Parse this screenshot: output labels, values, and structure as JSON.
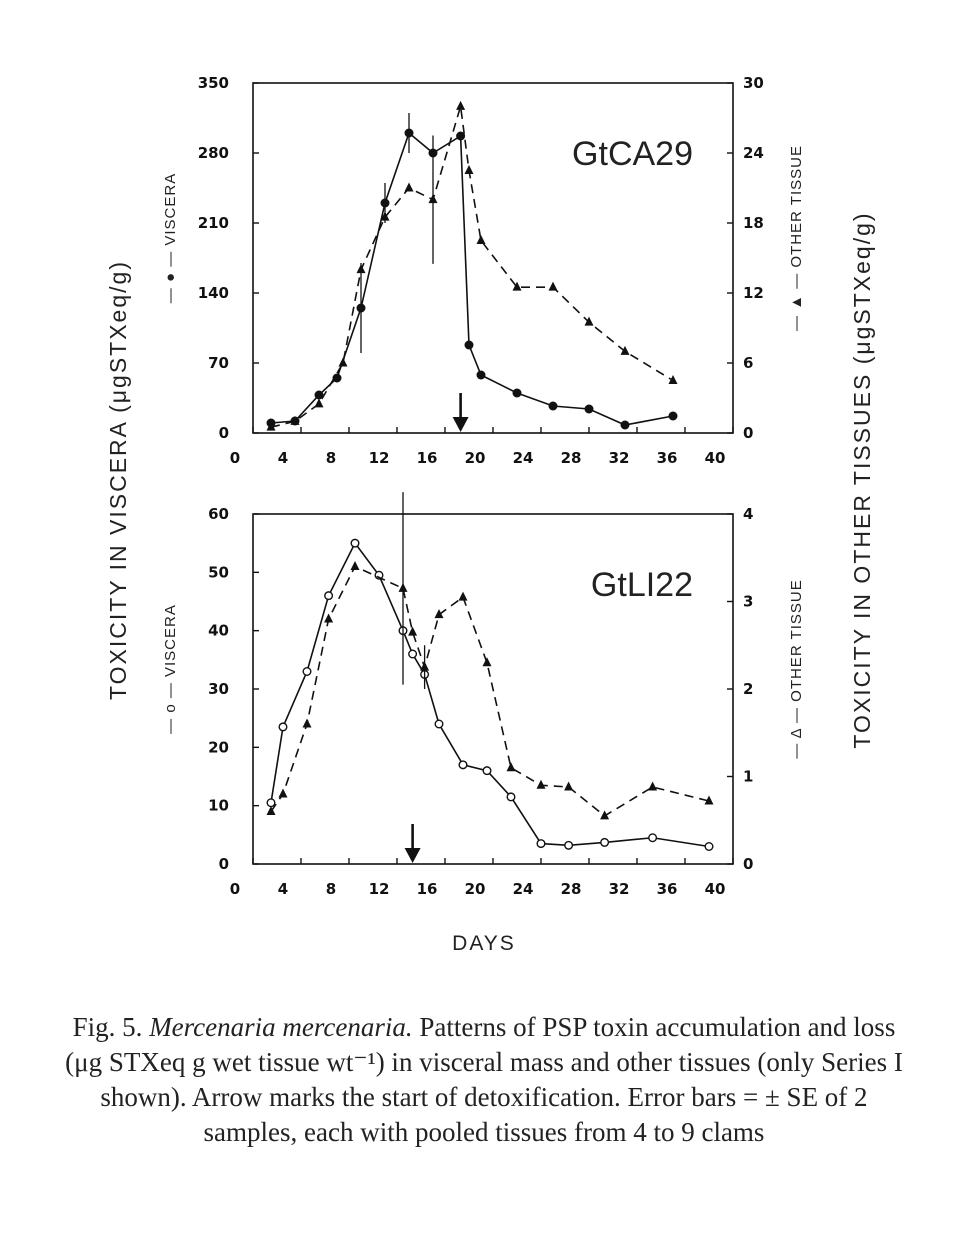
{
  "figure": {
    "y_left_title": "TOXICITY IN VISCERA (μgSTXeq/g)",
    "y_right_title": "TOXICITY IN OTHER TISSUES (μgSTXeq/g)",
    "x_title": "DAYS"
  },
  "caption": {
    "fig_label": "Fig. 5.",
    "species": "Mercenaria mercenaria.",
    "text": "Patterns of PSP toxin accumulation and loss (μg STXeq g wet tissue wt⁻¹) in visceral mass and other tissues (only Series I shown). Arrow marks the start of detoxification. Error bars = ± SE of 2 samples, each with pooled tissues from 4 to 9 clams"
  },
  "chart_data": [
    {
      "type": "line",
      "panel_label": "GtCA29",
      "x_ticks": [
        0,
        4,
        8,
        12,
        16,
        20,
        24,
        28,
        32,
        36,
        40
      ],
      "xlim": [
        0,
        40
      ],
      "left_axis": {
        "label": "— ● — VISCERA",
        "lim": [
          0,
          350
        ],
        "ticks": [
          0,
          70,
          140,
          210,
          280,
          350
        ]
      },
      "right_axis": {
        "label": "— ▲ — OTHER TISSUE",
        "lim": [
          0,
          30
        ],
        "ticks": [
          0,
          6,
          12,
          18,
          24,
          30
        ]
      },
      "detox_arrow_day": 17.3,
      "series": [
        {
          "name": "VISCERA",
          "axis": "left",
          "marker": "filled-circle",
          "line": "solid",
          "x": [
            1.5,
            3.5,
            5.5,
            7,
            9,
            11,
            13,
            15,
            17.3,
            18,
            19,
            22,
            25,
            28,
            31,
            35
          ],
          "y": [
            10,
            12,
            38,
            55,
            125,
            230,
            300,
            280,
            297,
            88,
            58,
            40,
            27,
            24,
            8,
            17
          ],
          "err": [
            0,
            0,
            0,
            0,
            45,
            20,
            20,
            0,
            0,
            0,
            0,
            0,
            0,
            0,
            0,
            0
          ]
        },
        {
          "name": "OTHER TISSUE",
          "axis": "right",
          "marker": "filled-triangle",
          "line": "dashed",
          "x": [
            1.5,
            3.5,
            5.5,
            7.5,
            9,
            11,
            13,
            15,
            17.3,
            18,
            19,
            22,
            25,
            28,
            31,
            35
          ],
          "y": [
            0.5,
            1,
            2.5,
            6,
            14,
            18.5,
            21,
            20,
            28,
            22.5,
            16.5,
            12.5,
            12.5,
            9.5,
            7,
            4.5
          ],
          "err": [
            0,
            0,
            0,
            0,
            0,
            0,
            0,
            5.5,
            0,
            0,
            0,
            0,
            0,
            0,
            0,
            0
          ]
        }
      ]
    },
    {
      "type": "line",
      "panel_label": "GtLI22",
      "x_ticks": [
        0,
        4,
        8,
        12,
        16,
        20,
        24,
        28,
        32,
        36,
        40
      ],
      "xlim": [
        0,
        40
      ],
      "left_axis": {
        "label": "— o — VISCERA",
        "lim": [
          0,
          60
        ],
        "ticks": [
          0,
          10,
          20,
          30,
          40,
          50,
          60
        ]
      },
      "right_axis": {
        "label": "— Δ — OTHER TISSUE",
        "lim": [
          0,
          4
        ],
        "ticks": [
          0,
          1,
          2,
          3,
          4
        ]
      },
      "detox_arrow_day": 13.3,
      "series": [
        {
          "name": "VISCERA",
          "axis": "left",
          "marker": "open-circle",
          "line": "solid",
          "x": [
            1.5,
            2.5,
            4.5,
            6.3,
            8.5,
            10.5,
            12.5,
            13.3,
            14.3,
            15.5,
            17.5,
            19.5,
            21.5,
            24,
            26.3,
            29.3,
            33.3,
            38
          ],
          "y": [
            10.5,
            23.5,
            33,
            46,
            55,
            49.5,
            40,
            36,
            32.5,
            24,
            17,
            16,
            11.5,
            3.5,
            3.2,
            3.7,
            4.5,
            3
          ],
          "err": [
            0,
            0,
            0,
            0,
            0,
            0,
            0,
            0,
            0,
            0,
            0,
            0,
            0,
            0,
            0,
            0,
            0,
            0
          ]
        },
        {
          "name": "OTHER TISSUE",
          "axis": "right",
          "marker": "filled-triangle",
          "line": "dashed",
          "x": [
            1.5,
            2.5,
            4.5,
            6.3,
            8.5,
            12.5,
            13.3,
            14.3,
            15.5,
            17.5,
            19.5,
            21.5,
            24,
            26.3,
            29.3,
            33.3,
            38
          ],
          "y": [
            0.6,
            0.8,
            1.6,
            2.8,
            3.4,
            3.15,
            2.65,
            2.25,
            2.85,
            3.05,
            2.3,
            1.1,
            0.9,
            0.88,
            0.55,
            0.88,
            0.72
          ],
          "err": [
            0,
            0,
            0,
            0,
            0,
            1.1,
            0,
            0.25,
            0,
            0,
            0,
            0,
            0,
            0,
            0,
            0,
            0
          ]
        }
      ]
    }
  ]
}
